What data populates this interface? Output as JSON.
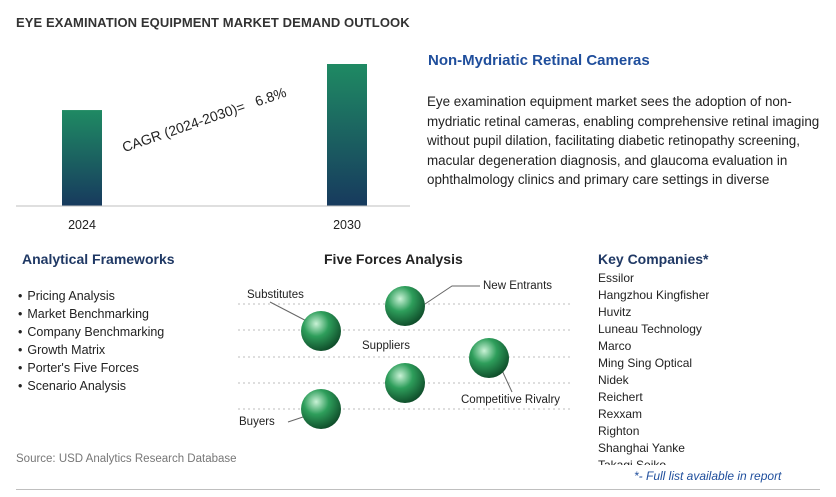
{
  "page": {
    "title": "EYE EXAMINATION EQUIPMENT MARKET DEMAND OUTLOOK"
  },
  "chart_data": {
    "type": "bar",
    "categories": [
      "2024",
      "2030"
    ],
    "values": [
      1,
      1.48
    ],
    "cagr_label": "CAGR (2024-2030)=",
    "cagr_value": "6.8%",
    "grid": false,
    "colors": {
      "bar_top": "#1f8a63",
      "bar_bottom": "#173a5e"
    }
  },
  "highlight": {
    "title": "Non-Mydriatic Retinal Cameras",
    "body": "Eye examination equipment market sees the adoption of non-mydriatic retinal cameras, enabling comprehensive retinal imaging without pupil dilation, facilitating diabetic retinopathy screening, macular degeneration diagnosis, and glaucoma evaluation in ophthalmology clinics and primary care settings in diverse"
  },
  "frameworks": {
    "title": "Analytical Frameworks",
    "items": [
      "Pricing Analysis",
      "Market Benchmarking",
      "Company Benchmarking",
      "Growth Matrix",
      "Porter's Five Forces",
      "Scenario Analysis"
    ]
  },
  "five_forces": {
    "title": "Five Forces Analysis",
    "forces": [
      "Substitutes",
      "New Entrants",
      "Suppliers",
      "Competitive Rivalry",
      "Buyers"
    ],
    "colors": {
      "sphere": "#2e9e5b",
      "highlight": "#c9f2d6",
      "shadow": "#0f4d2a"
    }
  },
  "companies": {
    "title": "Key Companies*",
    "items": [
      "Essilor",
      "Hangzhou Kingfisher",
      "Huvitz",
      "Luneau Technology",
      "Marco",
      "Ming Sing Optical",
      "Nidek",
      "Reichert",
      "Rexxam",
      "Righton",
      "Shanghai Yanke",
      "Takagi Seiko"
    ],
    "note": "*- Full list available in report"
  },
  "source": "Source: USD Analytics Research Database"
}
